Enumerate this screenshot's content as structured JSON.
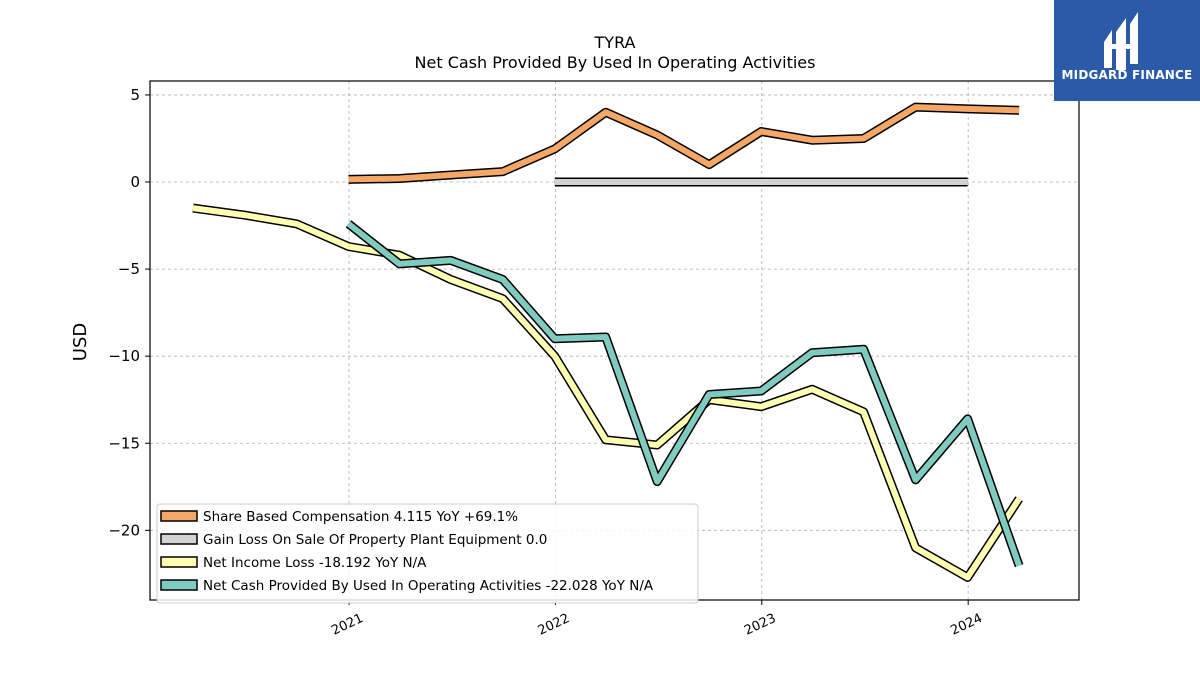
{
  "logo": {
    "text": "MIDGARD FINANCE"
  },
  "chart_data": {
    "type": "line",
    "title": "TYRA",
    "subtitle": "Net Cash Provided By Used In Operating Activities",
    "xlabel": "",
    "ylabel": "USD",
    "xlim": [
      "2020-01-15",
      "2024-07-15"
    ],
    "ylim": [
      -24,
      5.8
    ],
    "x_ticks": [
      {
        "date": "2021-01-01",
        "label": "2021"
      },
      {
        "date": "2022-01-01",
        "label": "2022"
      },
      {
        "date": "2023-01-01",
        "label": "2023"
      },
      {
        "date": "2024-01-01",
        "label": "2024"
      }
    ],
    "y_ticks": [
      5,
      0,
      -5,
      -10,
      -15,
      -20
    ],
    "y_tick_labels": [
      "5",
      "0",
      "−5",
      "−10",
      "−15",
      "−20"
    ],
    "grid": true,
    "legend_position": "lower-left",
    "series": [
      {
        "name": "Share Based Compensation  4.115 YoY +69.1%",
        "color": "#f5a765",
        "points": [
          [
            "2020-12-31",
            0.15
          ],
          [
            "2021-03-31",
            0.2
          ],
          [
            "2021-06-30",
            0.4
          ],
          [
            "2021-09-30",
            0.6
          ],
          [
            "2021-12-31",
            1.9
          ],
          [
            "2022-03-31",
            4.0
          ],
          [
            "2022-06-30",
            2.7
          ],
          [
            "2022-09-30",
            1.0
          ],
          [
            "2022-12-31",
            2.9
          ],
          [
            "2023-03-31",
            2.4
          ],
          [
            "2023-06-30",
            2.5
          ],
          [
            "2023-09-30",
            4.3
          ],
          [
            "2023-12-31",
            4.2
          ],
          [
            "2024-03-31",
            4.115
          ]
        ]
      },
      {
        "name": "Gain Loss On Sale Of Property Plant Equipment  0.0",
        "color": "#d3d3d3",
        "points": [
          [
            "2021-12-31",
            0.0
          ],
          [
            "2023-12-31",
            0.0
          ]
        ]
      },
      {
        "name": "Net Income Loss  -18.192 YoY N/A",
        "color": "#ffffb2",
        "points": [
          [
            "2020-03-31",
            -1.5
          ],
          [
            "2020-06-30",
            -1.9
          ],
          [
            "2020-09-30",
            -2.4
          ],
          [
            "2020-12-31",
            -3.7
          ],
          [
            "2021-03-31",
            -4.2
          ],
          [
            "2021-06-30",
            -5.6
          ],
          [
            "2021-09-30",
            -6.7
          ],
          [
            "2021-12-31",
            -10.0
          ],
          [
            "2022-03-31",
            -14.8
          ],
          [
            "2022-06-30",
            -15.1
          ],
          [
            "2022-09-30",
            -12.5
          ],
          [
            "2022-12-31",
            -12.9
          ],
          [
            "2023-03-31",
            -11.9
          ],
          [
            "2023-06-30",
            -13.2
          ],
          [
            "2023-09-30",
            -21.0
          ],
          [
            "2023-12-31",
            -22.7
          ],
          [
            "2024-03-31",
            -18.192
          ]
        ]
      },
      {
        "name": "Net Cash Provided By Used In Operating Activities  -22.028 YoY N/A",
        "color": "#80cbc0",
        "points": [
          [
            "2020-12-31",
            -2.4
          ],
          [
            "2021-03-31",
            -4.7
          ],
          [
            "2021-06-30",
            -4.5
          ],
          [
            "2021-09-30",
            -5.6
          ],
          [
            "2021-12-31",
            -9.0
          ],
          [
            "2022-03-31",
            -8.9
          ],
          [
            "2022-06-30",
            -17.2
          ],
          [
            "2022-09-30",
            -12.2
          ],
          [
            "2022-12-31",
            -12.0
          ],
          [
            "2023-03-31",
            -9.8
          ],
          [
            "2023-06-30",
            -9.6
          ],
          [
            "2023-09-30",
            -17.1
          ],
          [
            "2023-12-31",
            -13.6
          ],
          [
            "2024-03-31",
            -22.028
          ]
        ]
      }
    ]
  }
}
